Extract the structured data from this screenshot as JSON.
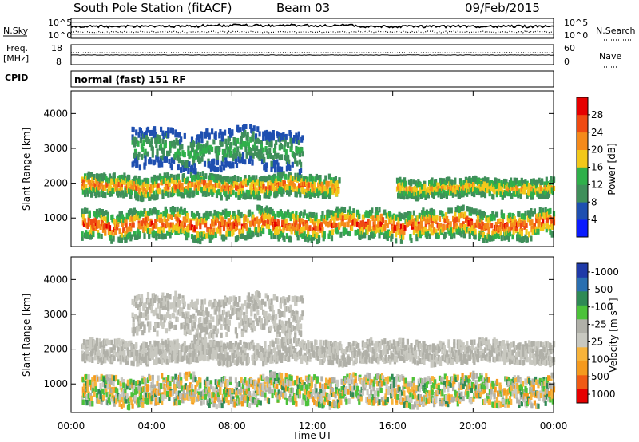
{
  "header": {
    "station": "South Pole Station (fitACF)",
    "beam": "Beam 03",
    "date": "09/Feb/2015"
  },
  "panels": {
    "nsky_label": "N.Sky",
    "nsearch_label": "N.Search",
    "freq_label_1": "Freq.",
    "freq_label_2": "[MHz]",
    "nave_label": "Nave",
    "cpid_label": "CPID",
    "cpid_value": "normal (fast) 151 RF",
    "noise_left_ticks": [
      "10^5",
      "10^0"
    ],
    "noise_right_ticks": [
      "10^5",
      "10^0"
    ],
    "freq_left_ticks": [
      "18",
      "8"
    ],
    "freq_right_ticks": [
      "60",
      "0"
    ]
  },
  "colors": {
    "power_scale": [
      "#0a1bff",
      "#1e4fb0",
      "#3f8f5a",
      "#2fb04a",
      "#f2c81a",
      "#f58a1a",
      "#ef4a12",
      "#e60000"
    ],
    "velocity_scale": [
      "#e60000",
      "#f05a14",
      "#f59a1e",
      "#f7b33a",
      "#c8c8c0",
      "#b0b0a8",
      "#4cc23a",
      "#2f8a55",
      "#2a6fb0",
      "#1f3aa8"
    ]
  },
  "chart_data": [
    {
      "type": "heatmap",
      "title": "",
      "xlabel": "",
      "ylabel": "Slant Range [km]",
      "xlim": [
        "00:00",
        "00:00"
      ],
      "ylim": [
        180,
        4650
      ],
      "x_ticks": [
        "00:00",
        "04:00",
        "08:00",
        "12:00",
        "16:00",
        "20:00",
        "00:00"
      ],
      "y_ticks": [
        1000,
        2000,
        3000,
        4000
      ],
      "colorbar": {
        "label": "Power [dB]",
        "ticks": [
          4,
          8,
          12,
          16,
          20,
          24,
          28
        ],
        "range": [
          0,
          32
        ]
      },
      "echo_bands": [
        {
          "range_km": [
            1600,
            2200
          ],
          "times": [
            "00:30",
            "13:20"
          ],
          "values_db": [
            8,
            28
          ]
        },
        {
          "range_km": [
            1600,
            2100
          ],
          "times": [
            "16:10",
            "00:00"
          ],
          "values_db": [
            8,
            24
          ]
        },
        {
          "range_km": [
            400,
            1200
          ],
          "times": [
            "00:30",
            "00:00"
          ],
          "values_db": [
            8,
            32
          ]
        },
        {
          "range_km": [
            2400,
            3500
          ],
          "times": [
            "03:00",
            "11:30"
          ],
          "values_db": [
            4,
            16
          ]
        }
      ]
    },
    {
      "type": "heatmap",
      "title": "",
      "xlabel": "Time UT",
      "ylabel": "Slant Range [km]",
      "xlim": [
        "00:00",
        "00:00"
      ],
      "ylim": [
        180,
        4650
      ],
      "x_ticks": [
        "00:00",
        "04:00",
        "08:00",
        "12:00",
        "16:00",
        "20:00",
        "00:00"
      ],
      "y_ticks": [
        1000,
        2000,
        3000,
        4000
      ],
      "colorbar": {
        "label": "Velocity [m s⁻¹]",
        "ticks": [
          1000,
          500,
          100,
          25,
          -25,
          -100,
          -500,
          -1000
        ],
        "range": [
          -1000,
          1000
        ]
      },
      "echo_bands": [
        {
          "range_km": [
            1600,
            2200
          ],
          "times": [
            "00:30",
            "00:00"
          ],
          "values_ms": [
            -25,
            25
          ]
        },
        {
          "range_km": [
            400,
            1200
          ],
          "times": [
            "00:30",
            "00:00"
          ],
          "values_ms": [
            -500,
            500
          ]
        },
        {
          "range_km": [
            2400,
            3500
          ],
          "times": [
            "03:00",
            "11:30"
          ],
          "values_ms": [
            -100,
            100
          ]
        }
      ]
    }
  ]
}
